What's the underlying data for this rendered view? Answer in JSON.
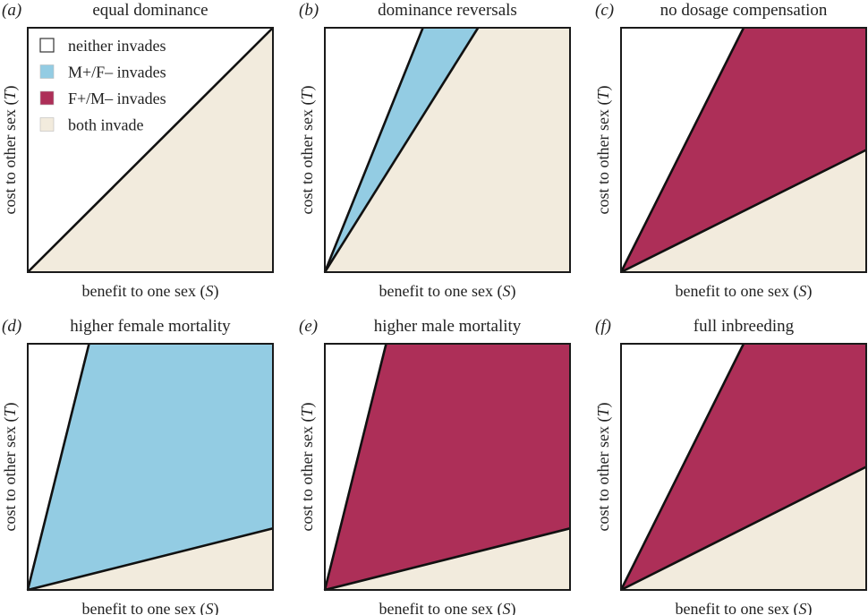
{
  "chart_data": {
    "type": "area",
    "description": "Invasion regions in the S–T parameter space for six genetic scenarios",
    "xlabel": "benefit to one sex (S)",
    "ylabel": "cost to other sex (T)",
    "xlim": [
      0,
      1
    ],
    "ylim": [
      0,
      1
    ],
    "grid": false,
    "legend": {
      "placement": "top-left of panel (a)",
      "entries": [
        {
          "key": "neither",
          "label": "neither invades",
          "color": "#ffffff"
        },
        {
          "key": "mplus",
          "label": "M+/F– invades",
          "color": "#93cce3"
        },
        {
          "key": "fplus",
          "label": "F+/M– invades",
          "color": "#ad2f58"
        },
        {
          "key": "both",
          "label": "both invade",
          "color": "#f2ebdd"
        }
      ]
    },
    "panels": [
      {
        "id": "a",
        "label": "(a)",
        "title": "equal dominance",
        "upper_slope": 1.0,
        "lower_slope": 1.0,
        "middle_region": "none",
        "regions": {
          "above_upper": "neither",
          "between": "none",
          "below_lower": "both"
        },
        "show_legend": true
      },
      {
        "id": "b",
        "label": "(b)",
        "title": "dominance reversals",
        "upper_slope": 2.5,
        "lower_slope": 1.6,
        "middle_region": "mplus",
        "regions": {
          "above_upper": "neither",
          "between": "mplus",
          "below_lower": "both"
        },
        "show_legend": false
      },
      {
        "id": "c",
        "label": "(c)",
        "title": "no dosage compensation",
        "upper_slope": 2.0,
        "lower_slope": 0.5,
        "middle_region": "fplus",
        "regions": {
          "above_upper": "neither",
          "between": "fplus",
          "below_lower": "both"
        },
        "show_legend": false
      },
      {
        "id": "d",
        "label": "(d)",
        "title": "higher female mortality",
        "upper_slope": 4.0,
        "lower_slope": 0.25,
        "middle_region": "mplus",
        "regions": {
          "above_upper": "neither",
          "between": "mplus",
          "below_lower": "both"
        },
        "show_legend": false
      },
      {
        "id": "e",
        "label": "(e)",
        "title": "higher male mortality",
        "upper_slope": 4.0,
        "lower_slope": 0.25,
        "middle_region": "fplus",
        "regions": {
          "above_upper": "neither",
          "between": "fplus",
          "below_lower": "both"
        },
        "show_legend": false
      },
      {
        "id": "f",
        "label": "(f)",
        "title": "full inbreeding",
        "upper_slope": 2.0,
        "lower_slope": 0.5,
        "middle_region": "fplus",
        "regions": {
          "above_upper": "neither",
          "between": "fplus",
          "below_lower": "both"
        },
        "show_legend": false
      }
    ]
  }
}
